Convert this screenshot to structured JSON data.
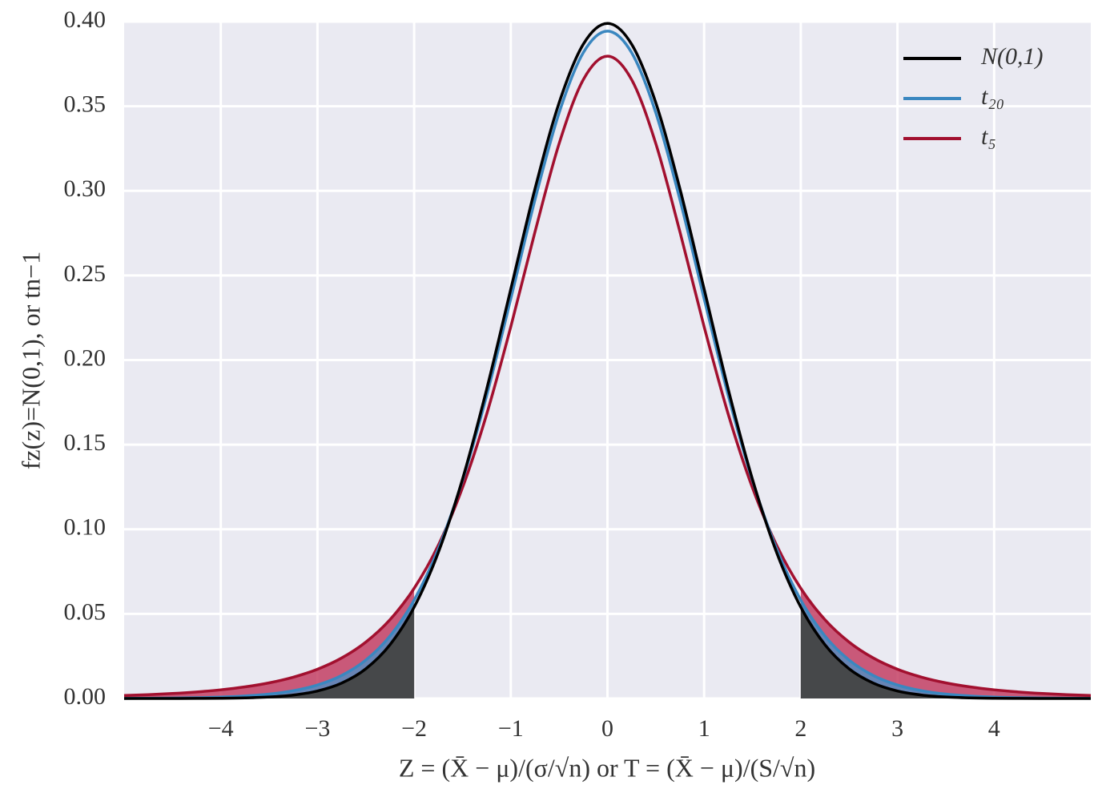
{
  "chart_data": {
    "type": "line",
    "xlabel": "Z = (X̄ − μ)/(σ/√n) or T = (X̄ − μ)/(S/√n)",
    "ylabel": "fz(z)=N(0,1), or tn−1",
    "x": [
      -5,
      -4.75,
      -4.5,
      -4.25,
      -4,
      -3.75,
      -3.5,
      -3.25,
      -3,
      -2.75,
      -2.5,
      -2.25,
      -2,
      -1.75,
      -1.5,
      -1.25,
      -1,
      -0.75,
      -0.5,
      -0.25,
      0,
      0.25,
      0.5,
      0.75,
      1,
      1.25,
      1.5,
      1.75,
      2,
      2.25,
      2.5,
      2.75,
      3,
      3.25,
      3.5,
      3.75,
      4,
      4.25,
      4.5,
      4.75,
      5
    ],
    "series": [
      {
        "name": "t₅",
        "color": "#a2102f",
        "values": [
          0.00176,
          0.00227,
          0.00295,
          0.00387,
          0.00512,
          0.00685,
          0.00924,
          0.01259,
          0.01729,
          0.02393,
          0.03333,
          0.04657,
          0.06509,
          0.09054,
          0.12452,
          0.1679,
          0.21968,
          0.2757,
          0.32792,
          0.36572,
          0.37961,
          0.36572,
          0.32792,
          0.2757,
          0.21968,
          0.1679,
          0.12452,
          0.09054,
          0.06509,
          0.04657,
          0.03333,
          0.02393,
          0.01729,
          0.01259,
          0.00924,
          0.00685,
          0.00512,
          0.00387,
          0.00295,
          0.00227,
          0.00176
        ]
      },
      {
        "name": "t₂₀",
        "color": "#3a87c0",
        "values": [
          8e-05,
          0.00014,
          0.00026,
          0.00046,
          0.00082,
          0.00147,
          0.00259,
          0.00459,
          0.00797,
          0.0136,
          0.02269,
          0.0369,
          0.05814,
          0.08834,
          0.12875,
          0.17901,
          0.23625,
          0.29471,
          0.34613,
          0.38164,
          0.39435,
          0.38164,
          0.34613,
          0.29471,
          0.23625,
          0.17901,
          0.12875,
          0.08834,
          0.05814,
          0.0369,
          0.02269,
          0.0136,
          0.00797,
          0.00459,
          0.00259,
          0.00147,
          0.00082,
          0.00046,
          0.00026,
          0.00014,
          8e-05
        ]
      },
      {
        "name": "N(0,1)",
        "color": "#000000",
        "values": [
          1e-06,
          1e-05,
          2e-05,
          5e-05,
          0.00013,
          0.00035,
          0.00087,
          0.00203,
          0.00443,
          0.00909,
          0.01753,
          0.03174,
          0.05399,
          0.08628,
          0.12952,
          0.18265,
          0.24197,
          0.30114,
          0.35207,
          0.38667,
          0.39894,
          0.38667,
          0.35207,
          0.30114,
          0.24197,
          0.18265,
          0.12952,
          0.08628,
          0.05399,
          0.03174,
          0.01753,
          0.00909,
          0.00443,
          0.00203,
          0.00087,
          0.00035,
          0.00013,
          5e-05,
          2e-05,
          1e-05,
          1e-06
        ]
      }
    ],
    "fill_colors": [
      "#c0345a",
      "#4f8fc4",
      "#444444"
    ],
    "shade_below": -2,
    "shade_above": 2,
    "xlim": [
      -5,
      5
    ],
    "ylim": [
      0,
      0.4
    ],
    "xticks": [
      {
        "value": -4,
        "label": "−4"
      },
      {
        "value": -3,
        "label": "−3"
      },
      {
        "value": -2,
        "label": "−2"
      },
      {
        "value": -1,
        "label": "−1"
      },
      0,
      1,
      2,
      3,
      4
    ],
    "yticks": [
      {
        "value": 0,
        "label": "0.00"
      },
      {
        "value": 0.05,
        "label": "0.05"
      },
      {
        "value": 0.1,
        "label": "0.10"
      },
      {
        "value": 0.15,
        "label": "0.15"
      },
      {
        "value": 0.2,
        "label": "0.20"
      },
      {
        "value": 0.25,
        "label": "0.25"
      },
      {
        "value": 0.3,
        "label": "0.30"
      },
      {
        "value": 0.35,
        "label": "0.35"
      },
      {
        "value": 0.4,
        "label": "0.40"
      }
    ],
    "grid": true,
    "legend": "upper right"
  }
}
